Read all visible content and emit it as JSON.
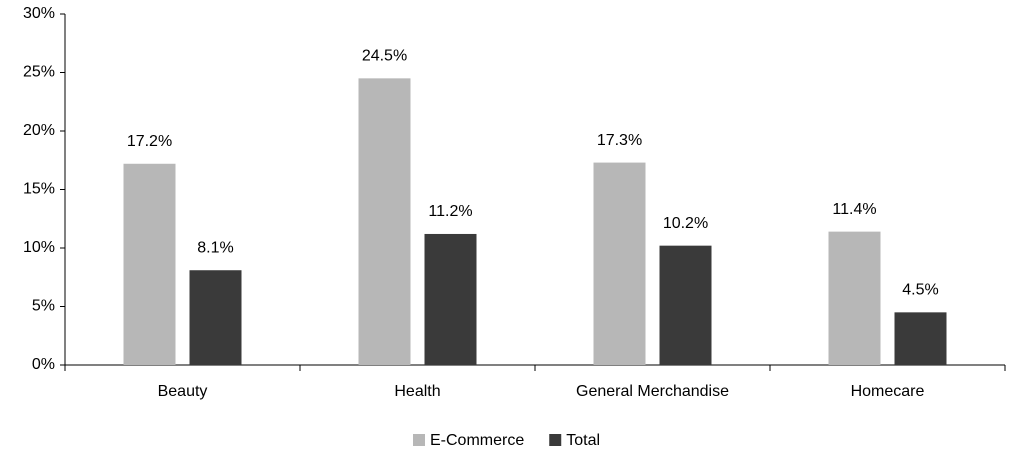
{
  "chart_data": {
    "type": "bar",
    "categories": [
      "Beauty",
      "Health",
      "General Merchandise",
      "Homecare"
    ],
    "series": [
      {
        "name": "E-Commerce",
        "color": "#b7b7b7",
        "values": [
          17.2,
          24.5,
          17.3,
          11.4
        ],
        "value_labels": [
          "17.2%",
          "24.5%",
          "17.3%",
          "11.4%"
        ]
      },
      {
        "name": "Total",
        "color": "#3a3a3a",
        "values": [
          8.1,
          11.2,
          10.2,
          4.5
        ],
        "value_labels": [
          "8.1%",
          "11.2%",
          "10.2%",
          "4.5%"
        ]
      }
    ],
    "ylim": [
      0,
      30
    ],
    "yticks": [
      {
        "value": 0,
        "label": "0%"
      },
      {
        "value": 5,
        "label": "5%"
      },
      {
        "value": 10,
        "label": "10%"
      },
      {
        "value": 15,
        "label": "15%"
      },
      {
        "value": 20,
        "label": "20%"
      },
      {
        "value": 25,
        "label": "25%"
      },
      {
        "value": 30,
        "label": "30%"
      }
    ],
    "grid": false,
    "legend": "bottom"
  }
}
